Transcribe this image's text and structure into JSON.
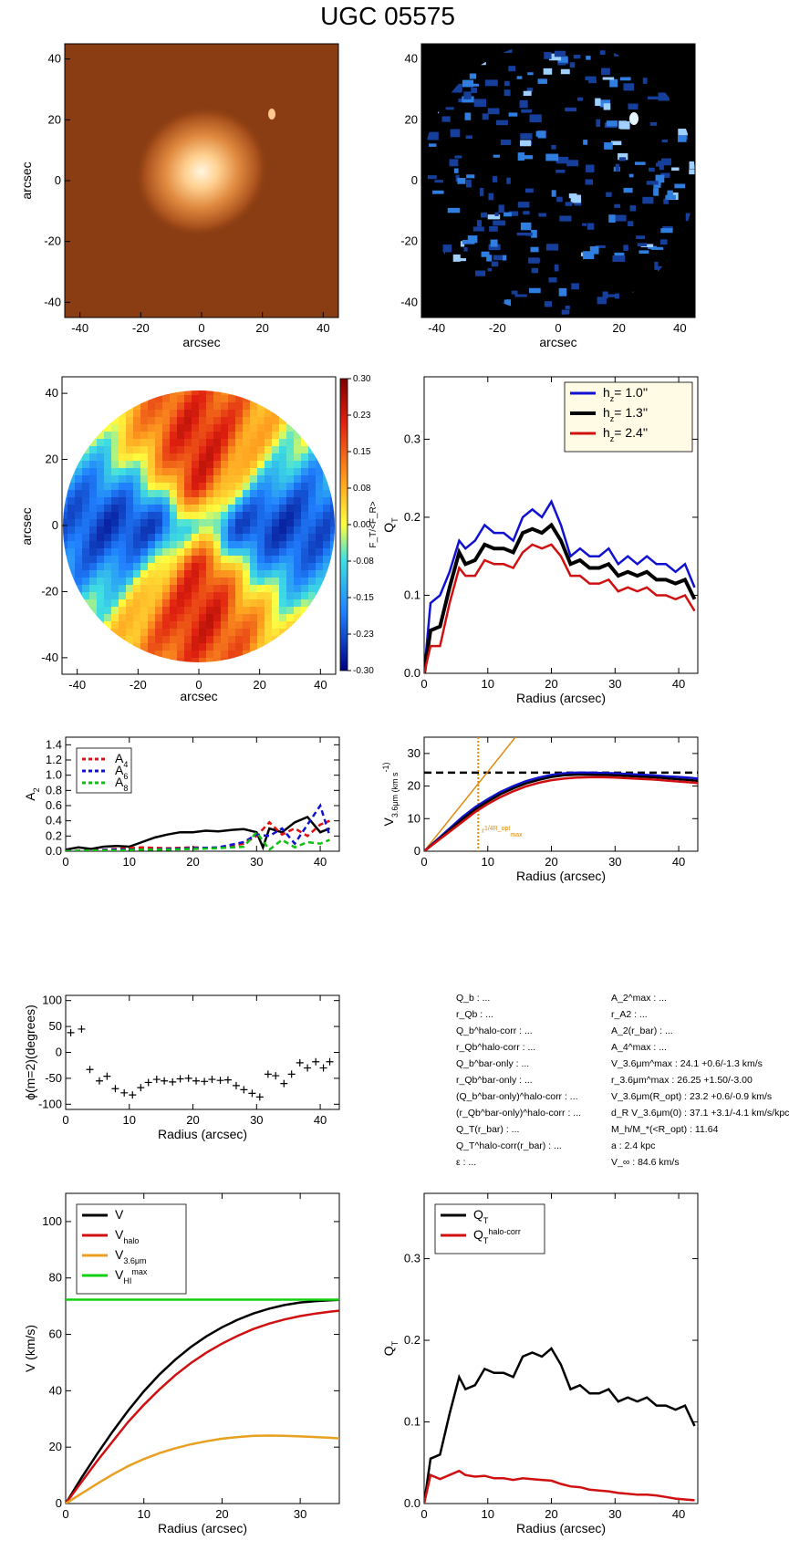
{
  "title": "UGC 05575",
  "panels": {
    "image_38": {
      "xlabel": "arcsec",
      "ylabel": "arcsec",
      "xticks": [
        -40,
        -20,
        0,
        20,
        40
      ],
      "yticks": [
        -40,
        -20,
        0,
        20,
        40
      ]
    },
    "residual_image": {
      "xlabel": "arcsec",
      "ylabel": "",
      "xticks": [
        -40,
        -20,
        0,
        20,
        40
      ],
      "yticks": [
        -40,
        -20,
        0,
        20,
        40
      ]
    },
    "force_map": {
      "xlabel": "arcsec",
      "ylabel": "arcsec",
      "xticks": [
        -40,
        -20,
        0,
        20,
        40
      ],
      "yticks": [
        -40,
        -20,
        0,
        20,
        40
      ],
      "colorbar_label": "F_T/<F_R>",
      "colorbar_ticks": [
        "0.30",
        "0.23",
        "0.15",
        "0.08",
        "0.00",
        "-0.08",
        "-0.15",
        "-0.23",
        "-0.30"
      ]
    }
  },
  "chart_data": [
    {
      "type": "line",
      "id": "qt_profiles",
      "xlabel": "Radius (arcsec)",
      "ylabel": "Q_T",
      "xlim": [
        0,
        43
      ],
      "ylim": [
        0,
        0.38
      ],
      "xticks": [
        0,
        10,
        20,
        30,
        40
      ],
      "yticks": [
        0.0,
        0.1,
        0.2,
        0.3
      ],
      "legend": "top-right",
      "series": [
        {
          "name": "h_z=  1.0''",
          "color": "#1010d0",
          "x": [
            0,
            1,
            2.5,
            4,
            5.5,
            6.5,
            8,
            9.5,
            11,
            12.5,
            14,
            15.5,
            17,
            18.5,
            20,
            21.5,
            23,
            24.5,
            26,
            27.5,
            29,
            30.5,
            32,
            33.5,
            35,
            36.5,
            38,
            39.5,
            41,
            42.5
          ],
          "values": [
            0,
            0.09,
            0.1,
            0.13,
            0.17,
            0.16,
            0.17,
            0.19,
            0.18,
            0.18,
            0.17,
            0.2,
            0.21,
            0.2,
            0.22,
            0.19,
            0.15,
            0.16,
            0.15,
            0.15,
            0.16,
            0.14,
            0.15,
            0.14,
            0.15,
            0.14,
            0.14,
            0.13,
            0.14,
            0.11
          ]
        },
        {
          "name": "h_z=  1.3''",
          "color": "#000000",
          "x": [
            0,
            1,
            2.5,
            4,
            5.5,
            6.5,
            8,
            9.5,
            11,
            12.5,
            14,
            15.5,
            17,
            18.5,
            20,
            21.5,
            23,
            24.5,
            26,
            27.5,
            29,
            30.5,
            32,
            33.5,
            35,
            36.5,
            38,
            39.5,
            41,
            42.5
          ],
          "values": [
            0,
            0.055,
            0.06,
            0.11,
            0.155,
            0.14,
            0.145,
            0.165,
            0.16,
            0.16,
            0.155,
            0.18,
            0.185,
            0.18,
            0.19,
            0.17,
            0.14,
            0.145,
            0.135,
            0.135,
            0.14,
            0.125,
            0.13,
            0.125,
            0.13,
            0.12,
            0.12,
            0.115,
            0.12,
            0.095
          ]
        },
        {
          "name": "h_z=  2.4''",
          "color": "#d01010",
          "x": [
            0,
            1,
            2.5,
            4,
            5.5,
            6.5,
            8,
            9.5,
            11,
            12.5,
            14,
            15.5,
            17,
            18.5,
            20,
            21.5,
            23,
            24.5,
            26,
            27.5,
            29,
            30.5,
            32,
            33.5,
            35,
            36.5,
            38,
            39.5,
            41,
            42.5
          ],
          "values": [
            0,
            0.035,
            0.035,
            0.09,
            0.135,
            0.125,
            0.125,
            0.145,
            0.14,
            0.14,
            0.135,
            0.155,
            0.165,
            0.16,
            0.165,
            0.15,
            0.125,
            0.125,
            0.115,
            0.115,
            0.12,
            0.105,
            0.11,
            0.105,
            0.11,
            0.1,
            0.1,
            0.095,
            0.1,
            0.08
          ]
        }
      ]
    },
    {
      "type": "line",
      "id": "fourier_amplitudes",
      "xlabel": "",
      "ylabel": "A_2",
      "xlim": [
        0,
        43
      ],
      "ylim": [
        0,
        1.5
      ],
      "xticks": [
        0,
        10,
        20,
        30,
        40
      ],
      "yticks": [
        0.0,
        0.2,
        0.4,
        0.6,
        0.8,
        1.0,
        1.2,
        1.4
      ],
      "legend": "top-left",
      "series": [
        {
          "name": "",
          "color": "#000000",
          "dash": false,
          "x": [
            0,
            2,
            4,
            6,
            8,
            10,
            12,
            14,
            16,
            18,
            20,
            22,
            24,
            26,
            28,
            30,
            31,
            32,
            34,
            36,
            38,
            40,
            41.5
          ],
          "values": [
            0.02,
            0.05,
            0.03,
            0.06,
            0.07,
            0.06,
            0.12,
            0.18,
            0.22,
            0.25,
            0.25,
            0.27,
            0.26,
            0.28,
            0.29,
            0.25,
            0.05,
            0.3,
            0.25,
            0.38,
            0.45,
            0.25,
            0.3
          ]
        },
        {
          "name": "A_4",
          "color": "#e01010",
          "dash": true,
          "x": [
            0,
            4,
            8,
            12,
            16,
            20,
            24,
            28,
            30,
            32,
            34,
            36,
            38,
            40,
            41.5
          ],
          "values": [
            0,
            0.01,
            0.03,
            0.05,
            0.04,
            0.05,
            0.04,
            0.1,
            0.2,
            0.38,
            0.22,
            0.3,
            0.2,
            0.35,
            0.4
          ]
        },
        {
          "name": "A_6",
          "color": "#1010d0",
          "dash": true,
          "x": [
            0,
            4,
            8,
            12,
            16,
            20,
            24,
            28,
            30,
            32,
            34,
            36,
            38,
            40,
            41.5
          ],
          "values": [
            0,
            0.01,
            0.02,
            0.02,
            0.03,
            0.04,
            0.05,
            0.12,
            0.22,
            0.2,
            0.3,
            0.1,
            0.35,
            0.6,
            0.2
          ]
        },
        {
          "name": "A_8",
          "color": "#10c010",
          "dash": true,
          "x": [
            0,
            4,
            8,
            12,
            16,
            20,
            24,
            28,
            30,
            32,
            34,
            36,
            38,
            40,
            41.5
          ],
          "values": [
            0,
            0.01,
            0.01,
            0.02,
            0.02,
            0.03,
            0.04,
            0.06,
            0.25,
            0.02,
            0.15,
            0.05,
            0.12,
            0.1,
            0.15
          ]
        }
      ]
    },
    {
      "type": "line",
      "id": "v36_rotation",
      "xlabel": "Radius (arcsec)",
      "ylabel": "V_3.6μm (km s^-1)",
      "xlim": [
        0,
        43
      ],
      "ylim": [
        0,
        35
      ],
      "xticks": [
        0,
        10,
        20,
        30,
        40
      ],
      "yticks": [
        0,
        10,
        20,
        30
      ],
      "annotation": "r_max^1/4R_opt",
      "r_max_quarter": 8.5,
      "hline": 24.1,
      "slope_line": {
        "color": "#e08a10",
        "slope": 2.44
      },
      "series": [
        {
          "name": "",
          "color": "#1010d0",
          "x": [
            0,
            2,
            4,
            6,
            8,
            10,
            12,
            14,
            16,
            18,
            20,
            22,
            24,
            26,
            28,
            30,
            32,
            34,
            36,
            38,
            40,
            42,
            43
          ],
          "values": [
            0,
            3.5,
            7,
            10.5,
            13.5,
            16,
            18.2,
            20,
            21.5,
            22.6,
            23.4,
            23.9,
            24.1,
            24.1,
            24.0,
            23.9,
            23.7,
            23.5,
            23.3,
            23.0,
            22.8,
            22.5,
            22.3
          ]
        },
        {
          "name": "",
          "color": "#000000",
          "x": [
            0,
            2,
            4,
            6,
            8,
            10,
            12,
            14,
            16,
            18,
            20,
            22,
            24,
            26,
            28,
            30,
            32,
            34,
            36,
            38,
            40,
            42,
            43
          ],
          "values": [
            0,
            3.2,
            6.5,
            9.8,
            12.8,
            15.3,
            17.5,
            19.3,
            20.8,
            21.9,
            22.8,
            23.3,
            23.5,
            23.5,
            23.4,
            23.3,
            23.1,
            22.9,
            22.7,
            22.4,
            22.1,
            21.8,
            21.6
          ]
        },
        {
          "name": "",
          "color": "#d01010",
          "x": [
            0,
            2,
            4,
            6,
            8,
            10,
            12,
            14,
            16,
            18,
            20,
            22,
            24,
            26,
            28,
            30,
            32,
            34,
            36,
            38,
            40,
            42,
            43
          ],
          "values": [
            0,
            3,
            6,
            9,
            12,
            14.5,
            16.6,
            18.4,
            19.9,
            21,
            21.8,
            22.3,
            22.6,
            22.7,
            22.7,
            22.6,
            22.4,
            22.2,
            22,
            21.7,
            21.4,
            21.1,
            20.9
          ]
        }
      ]
    },
    {
      "type": "scatter",
      "id": "phase_angle",
      "xlabel": "Radius (arcsec)",
      "ylabel": "ϕ(m=2)(degrees)",
      "xlim": [
        0,
        43
      ],
      "ylim": [
        -110,
        110
      ],
      "xticks": [
        0,
        10,
        20,
        30,
        40
      ],
      "yticks": [
        -100,
        -50,
        0,
        50,
        100
      ],
      "series": [
        {
          "name": "",
          "color": "#000000",
          "x": [
            0.8,
            2.5,
            3.8,
            5.3,
            6.5,
            7.8,
            9.2,
            10.5,
            11.8,
            13,
            14.3,
            15.5,
            16.8,
            18,
            19.3,
            20.5,
            21.8,
            23,
            24.3,
            25.5,
            26.8,
            28,
            29.3,
            30.5,
            31.8,
            33,
            34.3,
            35.5,
            36.8,
            38,
            39.3,
            40.5,
            41.5
          ],
          "values": [
            38,
            45,
            -33,
            -55,
            -46,
            -70,
            -78,
            -82,
            -68,
            -58,
            -52,
            -55,
            -57,
            -51,
            -50,
            -55,
            -56,
            -52,
            -54,
            -53,
            -64,
            -72,
            -79,
            -86,
            -42,
            -45,
            -60,
            -42,
            -20,
            -30,
            -18,
            -30,
            -18
          ]
        }
      ]
    },
    {
      "type": "line",
      "id": "velocity_decomposition",
      "xlabel": "Radius (arcsec)",
      "ylabel": "V (km/s)",
      "xlim": [
        0,
        35
      ],
      "ylim": [
        0,
        110
      ],
      "xticks": [
        0,
        10,
        20,
        30
      ],
      "yticks": [
        0,
        20,
        40,
        60,
        80,
        100
      ],
      "legend": "top-left",
      "series": [
        {
          "name": "V",
          "color": "#000000",
          "x": [
            0,
            2,
            4,
            6,
            8,
            10,
            12,
            14,
            16,
            18,
            20,
            22,
            24,
            26,
            28,
            30,
            32,
            34,
            35
          ],
          "values": [
            0,
            9,
            17.5,
            25.5,
            33,
            39.8,
            45.8,
            51,
            55.5,
            59.3,
            62.5,
            65.2,
            67.4,
            69.1,
            70.4,
            71.3,
            71.8,
            72.1,
            72.2
          ]
        },
        {
          "name": "V_halo",
          "color": "#d01010",
          "x": [
            0,
            2,
            4,
            6,
            8,
            10,
            12,
            14,
            16,
            18,
            20,
            22,
            24,
            26,
            28,
            30,
            32,
            34,
            35
          ],
          "values": [
            0,
            7.5,
            15,
            22,
            29,
            35,
            40.5,
            45.5,
            49.8,
            53.5,
            56.7,
            59.5,
            61.9,
            63.8,
            65.3,
            66.5,
            67.4,
            68.1,
            68.4
          ]
        },
        {
          "name": "V_3.6μm",
          "color": "#e8a020",
          "x": [
            0,
            2,
            4,
            6,
            8,
            10,
            12,
            14,
            16,
            18,
            20,
            22,
            24,
            26,
            28,
            30,
            32,
            34,
            35
          ],
          "values": [
            0,
            3.5,
            7,
            10.3,
            13.3,
            15.8,
            17.9,
            19.6,
            21,
            22.1,
            23,
            23.6,
            24,
            24.1,
            24,
            23.8,
            23.6,
            23.3,
            23.1
          ]
        },
        {
          "name": "V_HI^max",
          "color": "#10d010",
          "x": [
            0,
            35
          ],
          "values": [
            72.3,
            72.3
          ]
        }
      ]
    },
    {
      "type": "line",
      "id": "qt_halo_corr",
      "xlabel": "Radius (arcsec)",
      "ylabel": "Q_T",
      "xlim": [
        0,
        43
      ],
      "ylim": [
        0,
        0.38
      ],
      "xticks": [
        0,
        10,
        20,
        30,
        40
      ],
      "yticks": [
        0.0,
        0.1,
        0.2,
        0.3
      ],
      "legend": "top-left",
      "series": [
        {
          "name": "Q_T",
          "color": "#000000",
          "x": [
            0,
            1,
            2.5,
            4,
            5.5,
            6.5,
            8,
            9.5,
            11,
            12.5,
            14,
            15.5,
            17,
            18.5,
            20,
            21.5,
            23,
            24.5,
            26,
            27.5,
            29,
            30.5,
            32,
            33.5,
            35,
            36.5,
            38,
            39.5,
            41,
            42.5
          ],
          "values": [
            0,
            0.055,
            0.06,
            0.11,
            0.155,
            0.14,
            0.145,
            0.165,
            0.16,
            0.16,
            0.155,
            0.18,
            0.185,
            0.18,
            0.19,
            0.17,
            0.14,
            0.145,
            0.135,
            0.135,
            0.14,
            0.125,
            0.13,
            0.125,
            0.13,
            0.12,
            0.12,
            0.115,
            0.12,
            0.095
          ]
        },
        {
          "name": "Q_T^halo-corr",
          "color": "#d01010",
          "x": [
            0,
            1,
            2.5,
            4,
            5.5,
            6.5,
            8,
            9.5,
            11,
            12.5,
            14,
            15.5,
            17,
            18.5,
            20,
            21.5,
            23,
            24.5,
            26,
            27.5,
            29,
            30.5,
            32,
            33.5,
            35,
            36.5,
            38,
            39.5,
            41,
            42.5
          ],
          "values": [
            0,
            0.035,
            0.03,
            0.035,
            0.04,
            0.035,
            0.033,
            0.034,
            0.031,
            0.031,
            0.029,
            0.031,
            0.03,
            0.029,
            0.028,
            0.024,
            0.021,
            0.02,
            0.017,
            0.016,
            0.015,
            0.013,
            0.012,
            0.011,
            0.011,
            0.01,
            0.008,
            0.006,
            0.005,
            0.004
          ]
        }
      ]
    }
  ],
  "params": {
    "left": [
      "Q_b : ...",
      "r_Qb : ...",
      "Q_b^halo-corr : ...",
      "r_Qb^halo-corr : ...",
      "Q_b^bar-only : ...",
      "r_Qb^bar-only : ...",
      "(Q_b^bar-only)^halo-corr : ...",
      "(r_Qb^bar-only)^halo-corr : ...",
      "Q_T(r_bar) : ...",
      "Q_T^halo-corr(r_bar) : ...",
      "ε : ..."
    ],
    "right": [
      "A_2^max : ...",
      "r_A2 : ...",
      "A_2(r_bar) : ...",
      "A_4^max : ...",
      "V_3.6μm^max : 24.1 +0.6/-1.3 km/s",
      "r_3.6μm^max : 26.25 +1.50/-3.00",
      "V_3.6μm(R_opt) : 23.2 +0.6/-0.9 km/s",
      "d_R V_3.6μm(0) : 37.1 +3.1/-4.1 km/s/kpc",
      "M_h/M_*(<R_opt) : 11.64",
      "a : 2.4 kpc",
      "V_∞ : 84.6 km/s"
    ]
  }
}
